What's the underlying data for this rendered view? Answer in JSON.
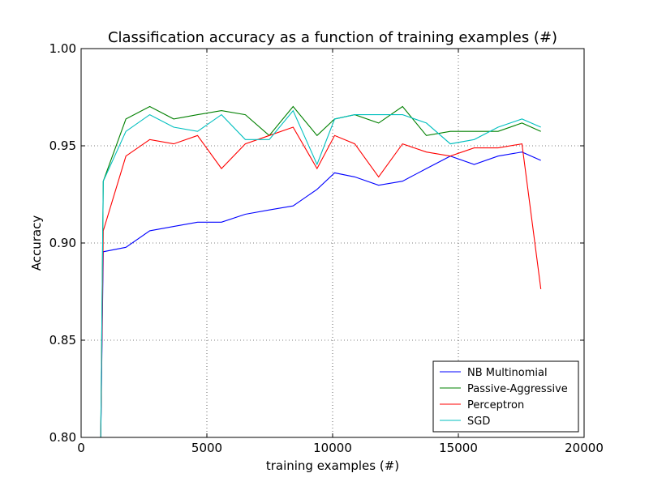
{
  "chart_data": {
    "type": "line",
    "title": "Classification accuracy as a function of training examples (#)",
    "xlabel": "training examples (#)",
    "ylabel": "Accuracy",
    "xlim": [
      0,
      20000
    ],
    "ylim": [
      0.8,
      1.0
    ],
    "xticks": [
      0,
      5000,
      10000,
      15000,
      20000
    ],
    "xtick_labels": [
      "0",
      "5000",
      "10000",
      "15000",
      "20000"
    ],
    "yticks": [
      0.8,
      0.85,
      0.9,
      0.95,
      1.0
    ],
    "ytick_labels": [
      "0.80",
      "0.85",
      "0.90",
      "0.95",
      "1.00"
    ],
    "grid": true,
    "legend_position": "bottom-right",
    "series": [
      {
        "name": "NB Multinomial",
        "color": "#0000ff",
        "x": [
          780,
          880,
          1780,
          2730,
          3680,
          4630,
          5580,
          6530,
          7480,
          8430,
          9380,
          10080,
          10880,
          11830,
          12780,
          13730,
          14680,
          15630,
          16580,
          17530,
          18280
        ],
        "y": [
          0.8,
          0.8955,
          0.8978,
          0.9063,
          0.9085,
          0.9107,
          0.9107,
          0.9148,
          0.917,
          0.9191,
          0.9276,
          0.9361,
          0.934,
          0.9297,
          0.9318,
          0.9383,
          0.9447,
          0.9404,
          0.9447,
          0.9468,
          0.9425
        ]
      },
      {
        "name": "Passive-Aggressive",
        "color": "#008000",
        "x": [
          780,
          880,
          1780,
          2730,
          3680,
          4630,
          5580,
          6530,
          7480,
          8430,
          9380,
          10080,
          10880,
          11830,
          12780,
          13730,
          14680,
          15630,
          16580,
          17530,
          18280
        ],
        "y": [
          0.8,
          0.9318,
          0.9638,
          0.9702,
          0.9638,
          0.966,
          0.9681,
          0.966,
          0.9553,
          0.9702,
          0.9553,
          0.9638,
          0.966,
          0.9617,
          0.9702,
          0.9553,
          0.9574,
          0.9574,
          0.9574,
          0.9617,
          0.9574
        ]
      },
      {
        "name": "Perceptron",
        "color": "#ff0000",
        "x": [
          780,
          880,
          1780,
          2730,
          3680,
          4630,
          5580,
          6530,
          7480,
          8430,
          9380,
          10080,
          10880,
          11830,
          12780,
          13730,
          14680,
          15630,
          16580,
          17530,
          18280
        ],
        "y": [
          0.8,
          0.9063,
          0.9447,
          0.9532,
          0.951,
          0.9553,
          0.9383,
          0.951,
          0.9553,
          0.9596,
          0.9383,
          0.9553,
          0.951,
          0.934,
          0.951,
          0.9468,
          0.9447,
          0.9489,
          0.9489,
          0.951,
          0.8763
        ]
      },
      {
        "name": "SGD",
        "color": "#00bfbf",
        "x": [
          780,
          880,
          1780,
          2730,
          3680,
          4630,
          5580,
          6530,
          7480,
          8430,
          9380,
          10080,
          10880,
          11830,
          12780,
          13730,
          14680,
          15630,
          16580,
          17530,
          18280
        ],
        "y": [
          0.8,
          0.9318,
          0.9574,
          0.966,
          0.9596,
          0.9574,
          0.966,
          0.9532,
          0.9532,
          0.9681,
          0.9404,
          0.9638,
          0.966,
          0.966,
          0.966,
          0.9617,
          0.951,
          0.9532,
          0.9596,
          0.9638,
          0.9596
        ]
      }
    ]
  }
}
